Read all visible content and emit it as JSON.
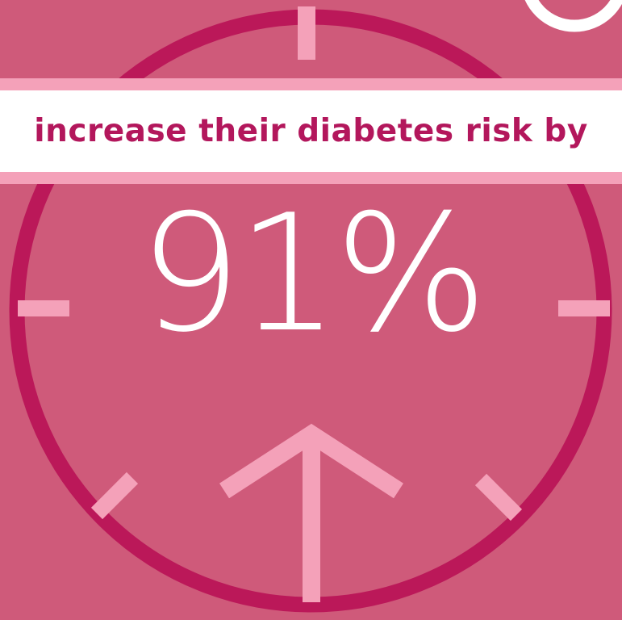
{
  "headline": {
    "text": "increase their diabetes risk by"
  },
  "stat": {
    "value": "91%"
  },
  "icons": {
    "dial": "clock-dial-icon",
    "arrow": "up-arrow-icon",
    "corner": "partial-ring-icon"
  },
  "colors": {
    "background": "#cf5a7a",
    "dial_ring": "#bb1859",
    "tick_marks": "#f4a1b9",
    "banner_fill": "#ffffff",
    "banner_border": "#f4a1b9",
    "headline_text": "#b3175c",
    "stat_text": "#ffffff"
  }
}
